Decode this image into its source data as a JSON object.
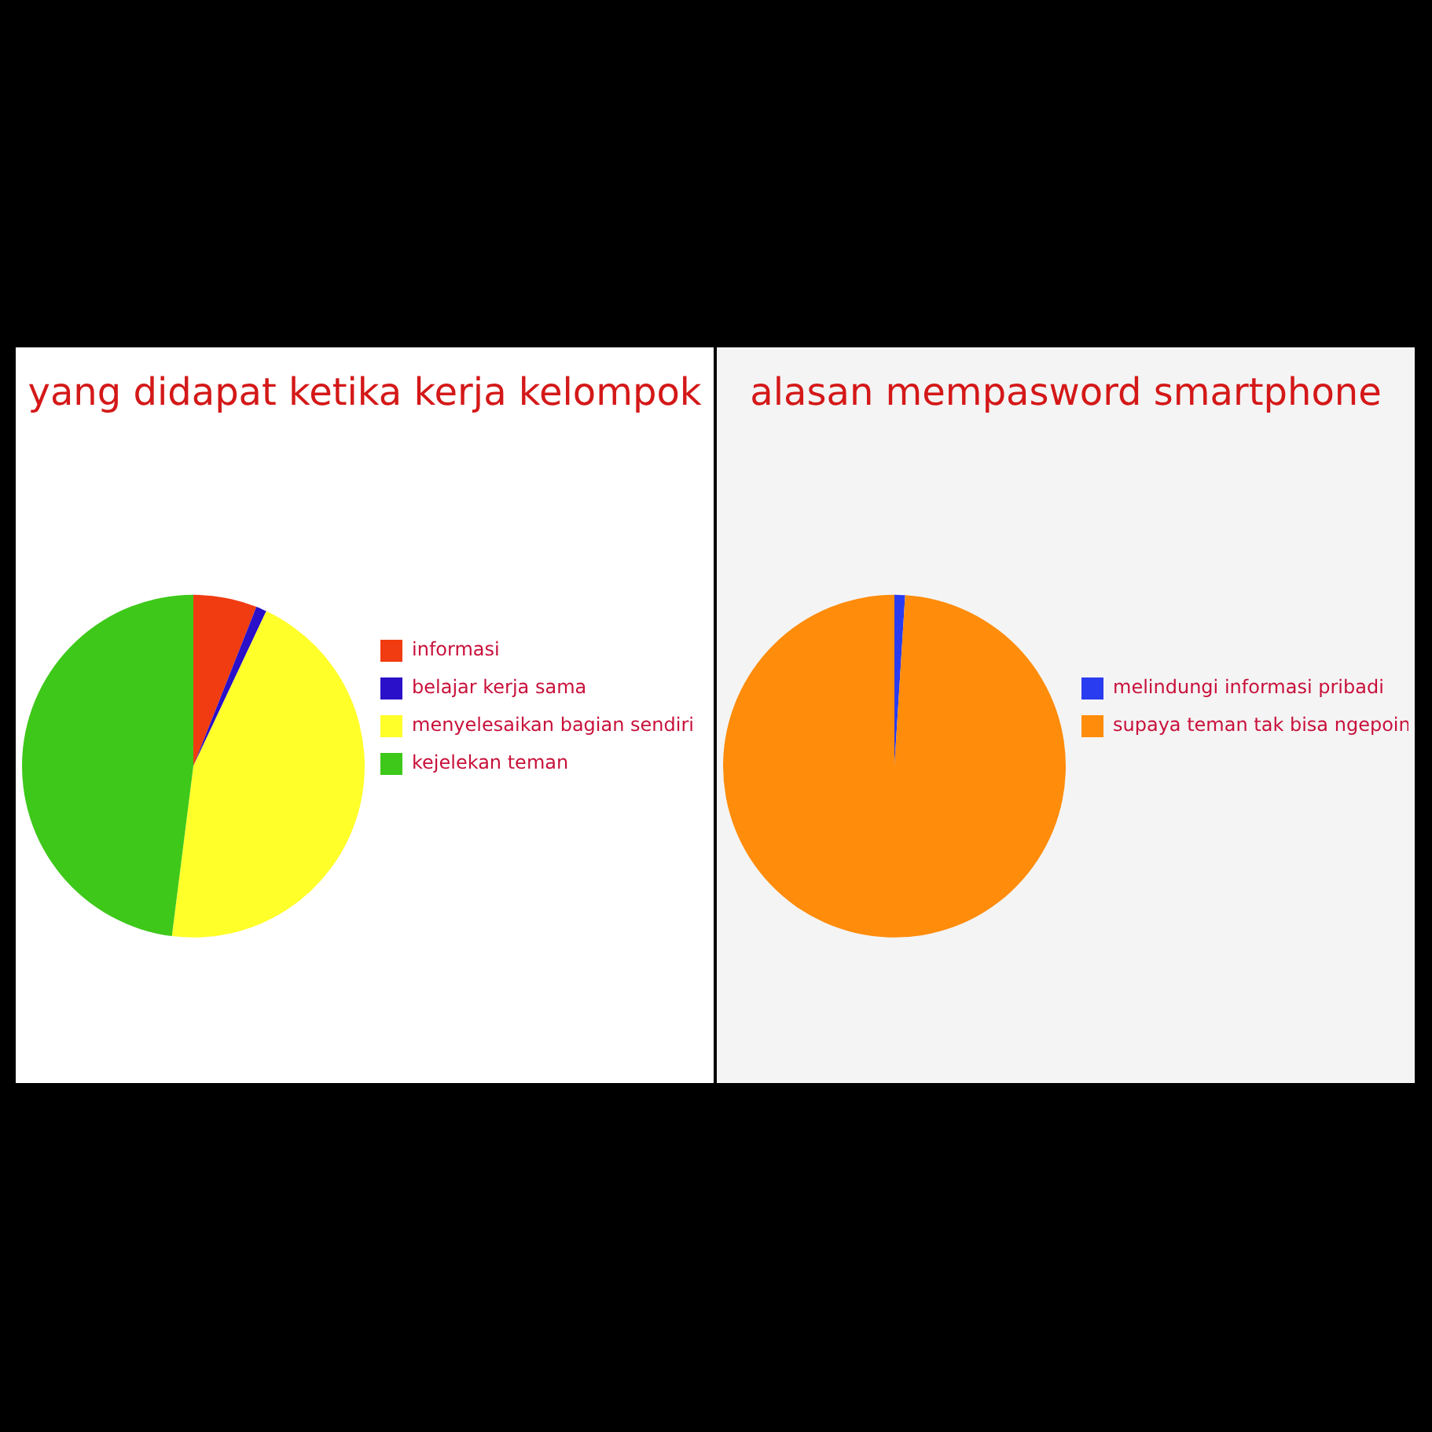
{
  "chart_data": [
    {
      "type": "pie",
      "title": "yang didapat ketika kerja kelompok",
      "categories": [
        "informasi",
        "belajar kerja sama",
        "menyelesaikan bagian sendiri",
        "kejelekan teman"
      ],
      "values": [
        6,
        1,
        45,
        48
      ],
      "colors": [
        "#f03c10",
        "#2a10c8",
        "#ffff2a",
        "#3ec81a"
      ],
      "legend": "right"
    },
    {
      "type": "pie",
      "title": "alasan mempasword smartphone",
      "categories": [
        "melindungi informasi pribadi",
        "supaya teman tak bisa ngepoin"
      ],
      "values": [
        1,
        99
      ],
      "colors": [
        "#2a3cf0",
        "#ff8c0a"
      ],
      "legend": "right"
    }
  ]
}
